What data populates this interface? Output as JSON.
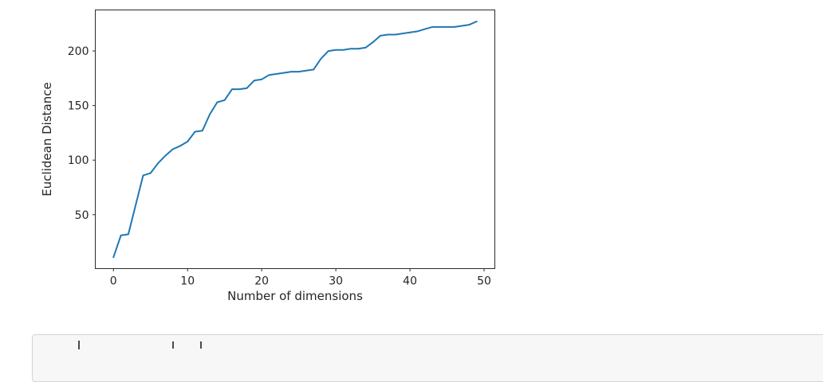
{
  "page": {
    "background": "#ffffff"
  },
  "chart_data": {
    "type": "line",
    "title": "",
    "xlabel": "Number of dimensions",
    "ylabel": "Euclidean Distance",
    "x": [
      0,
      1,
      2,
      3,
      4,
      5,
      6,
      7,
      8,
      9,
      10,
      11,
      12,
      13,
      14,
      15,
      16,
      17,
      18,
      19,
      20,
      21,
      22,
      23,
      24,
      25,
      26,
      27,
      28,
      29,
      30,
      31,
      32,
      33,
      34,
      35,
      36,
      37,
      38,
      39,
      40,
      41,
      42,
      43,
      44,
      45,
      46,
      47,
      48,
      49
    ],
    "series": [
      {
        "name": "euclidean-distance",
        "color": "#1f77b4",
        "values": [
          11,
          31,
          32,
          59,
          86,
          88,
          97,
          104,
          110,
          113,
          117,
          126,
          127,
          142,
          153,
          155,
          165,
          165,
          166,
          173,
          174,
          178,
          179,
          180,
          181,
          181,
          182,
          183,
          193,
          200,
          201,
          201,
          202,
          202,
          203,
          208,
          214,
          215,
          215,
          216,
          217,
          218,
          220,
          222,
          222,
          222,
          222,
          223,
          224,
          227
        ]
      }
    ],
    "xlim": [
      -2.45,
      51.45
    ],
    "ylim": [
      0.6,
      237.6
    ],
    "xticks": [
      0,
      10,
      20,
      30,
      40,
      50
    ],
    "yticks": [
      50,
      100,
      150,
      200
    ],
    "grid": false,
    "legend_position": "none",
    "axis_color": "#2b2b2b",
    "tick_label_color": "#262626",
    "line_width": 2
  },
  "code_cell": {
    "background": "#f7f7f7",
    "border_color": "#d4d4d4",
    "text": ""
  }
}
